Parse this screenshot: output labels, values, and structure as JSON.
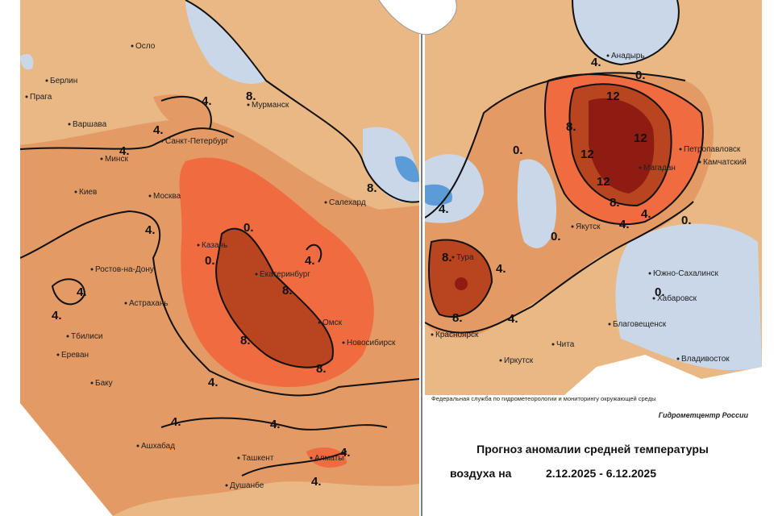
{
  "left_map": {
    "cities": [
      "Осло",
      "Берлин",
      "Прага",
      "Варшава",
      "Минск",
      "Санкт-Петербург",
      "Мурманск",
      "Киев",
      "Москва",
      "Салехард",
      "Казань",
      "Ростов-на-Дону",
      "Екатеринбург",
      "Астрахань",
      "Омск",
      "Тбилиси",
      "Новосибирск",
      "Ереван",
      "Баку",
      "Ашхабад",
      "Ташкент",
      "Алматы",
      "Душанбе"
    ],
    "contour_labels": [
      "4.",
      "4.",
      "4.",
      "4.",
      "4.",
      "4.",
      "4.",
      "4.",
      "4.",
      "4.",
      "4.",
      "4.",
      "0.",
      "0.",
      "8.",
      "8.",
      "8.",
      "8.",
      "8."
    ]
  },
  "right_map": {
    "cities": [
      "Анадырь",
      "Петропавловск",
      "Камчатский",
      "Магадан",
      "Якутск",
      "Тура",
      "Южно-Сахалинск",
      "Хабаровск",
      "Благовещенск",
      "Красноярск",
      "Чита",
      "Иркутск",
      "Владивосток"
    ],
    "contour_labels": [
      "4.",
      "4.",
      "4.",
      "4.",
      "4.",
      "4.",
      "0.",
      "0.",
      "0.",
      "0.",
      "0.",
      "12",
      "12",
      "12",
      "12",
      "8.",
      "8.",
      "8.",
      "8."
    ]
  },
  "footer": {
    "agency": "Федеральная служба по гидрометеорологии и мониторингу окружающей среды",
    "center": "Гидрометцентр России",
    "title": "Прогноз аномалии средней температуры",
    "date_prefix": "воздуха на",
    "date_range": "2.12.2025 - 6.12.2025"
  }
}
